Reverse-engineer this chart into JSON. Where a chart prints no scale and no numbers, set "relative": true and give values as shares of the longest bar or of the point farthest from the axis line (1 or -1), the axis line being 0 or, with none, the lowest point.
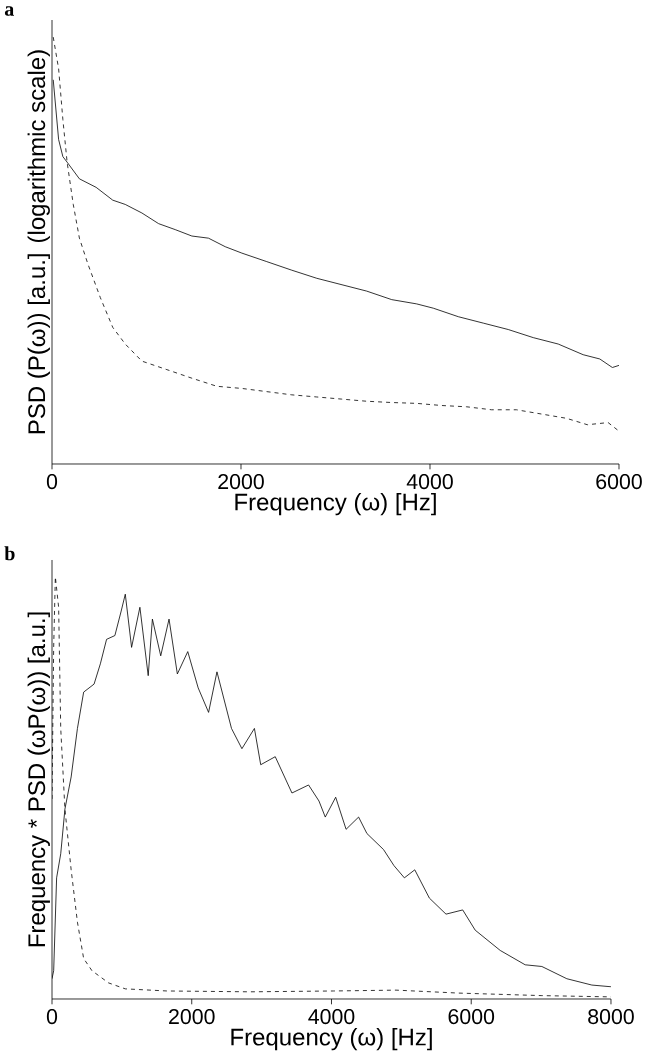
{
  "chart_data": [
    {
      "type": "line",
      "title": "a",
      "xlabel": "Frequency (ω) [Hz]",
      "ylabel": "PSD (P(ω)) [a.u.] (logarithmic scale)",
      "relative": true,
      "xlim": [
        0,
        6000
      ],
      "xticks": [
        0,
        2000,
        4000,
        6000
      ],
      "marker": "none",
      "series": [
        {
          "color": "#000000",
          "line_style": "solid",
          "x": [
            13,
            70,
            115,
            160,
            290,
            467,
            643,
            775,
            951,
            1128,
            1304,
            1480,
            1656,
            1833,
            2009,
            2273,
            2537,
            2802,
            3066,
            3330,
            3595,
            3859,
            4035,
            4300,
            4564,
            4828,
            5093,
            5357,
            5621,
            5797,
            5930,
            6000
          ],
          "values": [
            0.9,
            0.76,
            0.72,
            0.707,
            0.668,
            0.648,
            0.618,
            0.608,
            0.588,
            0.563,
            0.549,
            0.534,
            0.529,
            0.509,
            0.494,
            0.474,
            0.454,
            0.435,
            0.42,
            0.405,
            0.385,
            0.375,
            0.365,
            0.345,
            0.33,
            0.315,
            0.296,
            0.281,
            0.256,
            0.246,
            0.226,
            0.231
          ]
        },
        {
          "color": "#000000",
          "line_style": "dashed",
          "x": [
            13,
            70,
            115,
            160,
            225,
            290,
            379,
            511,
            643,
            775,
            951,
            1216,
            1480,
            1745,
            2009,
            2185,
            2537,
            2802,
            3066,
            3330,
            3595,
            3859,
            4123,
            4388,
            4652,
            4916,
            5181,
            5445,
            5665,
            5885,
            6000
          ],
          "values": [
            1.0,
            0.926,
            0.807,
            0.707,
            0.608,
            0.529,
            0.469,
            0.39,
            0.32,
            0.281,
            0.241,
            0.221,
            0.201,
            0.182,
            0.177,
            0.172,
            0.162,
            0.157,
            0.152,
            0.147,
            0.144,
            0.142,
            0.137,
            0.134,
            0.127,
            0.127,
            0.117,
            0.107,
            0.092,
            0.097,
            0.077
          ]
        }
      ]
    },
    {
      "type": "line",
      "title": "b",
      "xlabel": "Frequency (ω) [Hz]",
      "ylabel": "Frequency * PSD (ωP(ω)) [a.u.]",
      "relative": true,
      "xlim": [
        0,
        8000
      ],
      "xticks": [
        0,
        2000,
        4000,
        6000,
        8000
      ],
      "marker": "none",
      "series": [
        {
          "color": "#000000",
          "line_style": "solid",
          "x": [
            0,
            24,
            66,
            125,
            185,
            274,
            364,
            453,
            602,
            692,
            781,
            900,
            990,
            1049,
            1139,
            1258,
            1377,
            1437,
            1556,
            1675,
            1794,
            1943,
            2092,
            2241,
            2361,
            2569,
            2718,
            2897,
            2987,
            3195,
            3434,
            3672,
            3821,
            3911,
            4060,
            4209,
            4388,
            4507,
            4745,
            4894,
            5043,
            5192,
            5401,
            5639,
            5878,
            6057,
            6415,
            6772,
            7011,
            7368,
            7726,
            8000
          ],
          "values": [
            0.048,
            0.067,
            0.287,
            0.344,
            0.45,
            0.526,
            0.641,
            0.727,
            0.746,
            0.794,
            0.852,
            0.861,
            0.919,
            0.959,
            0.833,
            0.928,
            0.766,
            0.9,
            0.813,
            0.9,
            0.77,
            0.823,
            0.737,
            0.679,
            0.775,
            0.641,
            0.593,
            0.641,
            0.555,
            0.574,
            0.488,
            0.507,
            0.469,
            0.431,
            0.478,
            0.402,
            0.431,
            0.392,
            0.354,
            0.316,
            0.287,
            0.306,
            0.239,
            0.201,
            0.211,
            0.163,
            0.115,
            0.081,
            0.077,
            0.048,
            0.033,
            0.029
          ]
        },
        {
          "color": "#000000",
          "line_style": "dashed",
          "x": [
            0,
            24,
            48,
            95,
            125,
            185,
            274,
            364,
            453,
            572,
            811,
            1049,
            1645,
            2838,
            4030,
            4924,
            5818,
            7011,
            8000
          ],
          "values": [
            0.474,
            0.833,
            1.0,
            0.928,
            0.641,
            0.45,
            0.306,
            0.182,
            0.096,
            0.067,
            0.038,
            0.024,
            0.019,
            0.017,
            0.019,
            0.021,
            0.014,
            0.008,
            0.005
          ]
        }
      ]
    }
  ]
}
